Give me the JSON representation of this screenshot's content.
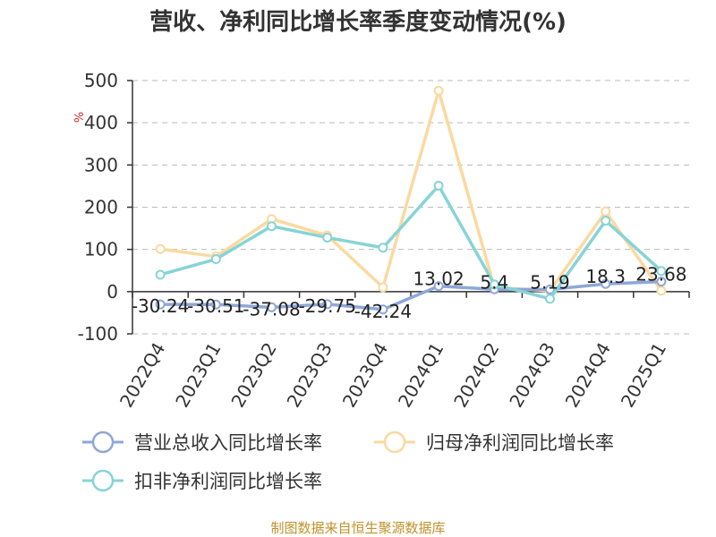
{
  "chart_data": {
    "type": "line",
    "title": "营收、净利同比增长率季度变动情况(%)",
    "ylabel": "%",
    "categories": [
      "2022Q4",
      "2023Q1",
      "2023Q2",
      "2023Q3",
      "2023Q4",
      "2024Q1",
      "2024Q2",
      "2024Q3",
      "2024Q4",
      "2025Q1"
    ],
    "ylim": [
      -100,
      500
    ],
    "yticks": [
      "500",
      "400",
      "300",
      "200",
      "100",
      "0",
      "-100"
    ],
    "grid": true,
    "legend_position": "bottom",
    "series": [
      {
        "name": "营业总收入同比增长率",
        "color": "#8ea7d8",
        "values": [
          -30.24,
          -30.51,
          -37.08,
          -29.75,
          -42.24,
          13.02,
          5.4,
          5.19,
          18.3,
          23.68
        ],
        "labels": [
          "-30.24",
          "-30.51",
          "-37.08",
          "-29.75",
          "-42.24",
          "13.02",
          "5.4",
          "5.19",
          "18.3",
          "23.68"
        ]
      },
      {
        "name": "归母净利润同比增长率",
        "color": "#fbd9a0",
        "values": [
          101,
          83,
          172,
          133,
          10,
          476,
          10,
          2,
          190,
          2
        ]
      },
      {
        "name": "扣非净利润同比增长率",
        "color": "#86d4d6",
        "values": [
          40,
          77,
          155,
          128,
          104,
          251,
          17,
          -17,
          168,
          49
        ]
      }
    ]
  },
  "source": "制图数据来自恒生聚源数据库"
}
